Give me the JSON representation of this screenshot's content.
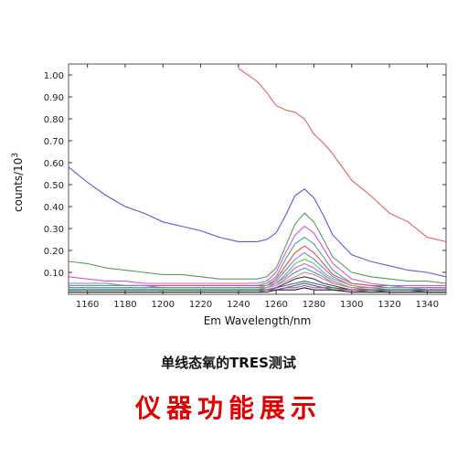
{
  "chart_data": {
    "type": "line",
    "xlabel": "Em Wavelength/nm",
    "ylabel_main": "counts/10",
    "ylabel_exp": "3",
    "xlim": [
      1150,
      1350
    ],
    "ylim": [
      0,
      1.05
    ],
    "x_ticks": [
      1160,
      1180,
      1200,
      1220,
      1240,
      1260,
      1280,
      1300,
      1320,
      1340
    ],
    "y_ticks": [
      0.1,
      0.2,
      0.3,
      0.4,
      0.5,
      0.6,
      0.7,
      0.8,
      0.9,
      1.0
    ],
    "y_tick_labels": [
      "0.10",
      "0.20",
      "0.30",
      "0.40",
      "0.50",
      "0.60",
      "0.70",
      "0.80",
      "0.90",
      "1.00"
    ],
    "grid": false,
    "x": [
      1150,
      1160,
      1170,
      1180,
      1190,
      1200,
      1210,
      1220,
      1230,
      1240,
      1250,
      1255,
      1260,
      1265,
      1270,
      1275,
      1280,
      1285,
      1290,
      1300,
      1310,
      1320,
      1330,
      1340,
      1350
    ],
    "series": [
      {
        "color": "#e06060",
        "values": [
          null,
          null,
          null,
          null,
          null,
          null,
          null,
          null,
          null,
          1.03,
          0.97,
          0.92,
          0.86,
          0.84,
          0.83,
          0.8,
          0.73,
          0.69,
          0.64,
          0.52,
          0.45,
          0.37,
          0.33,
          0.26,
          0.24
        ]
      },
      {
        "color": "#5a5ad8",
        "values": [
          0.58,
          0.51,
          0.45,
          0.4,
          0.37,
          0.33,
          0.31,
          0.29,
          0.26,
          0.24,
          0.24,
          0.25,
          0.28,
          0.36,
          0.45,
          0.48,
          0.44,
          0.36,
          0.27,
          0.18,
          0.15,
          0.13,
          0.11,
          0.1,
          0.08
        ]
      },
      {
        "color": "#5a9a5a",
        "values": [
          0.15,
          0.14,
          0.12,
          0.11,
          0.1,
          0.09,
          0.09,
          0.08,
          0.07,
          0.07,
          0.07,
          0.08,
          0.12,
          0.22,
          0.32,
          0.37,
          0.33,
          0.25,
          0.17,
          0.1,
          0.08,
          0.07,
          0.06,
          0.06,
          0.05
        ]
      },
      {
        "color": "#e050e0",
        "values": [
          0.08,
          0.07,
          0.06,
          0.06,
          0.05,
          0.05,
          0.05,
          0.05,
          0.05,
          0.05,
          0.05,
          0.06,
          0.1,
          0.19,
          0.27,
          0.31,
          0.28,
          0.21,
          0.14,
          0.07,
          0.05,
          0.04,
          0.04,
          0.04,
          0.04
        ]
      },
      {
        "color": "#50a0a0",
        "values": [
          0.05,
          0.05,
          0.05,
          0.04,
          0.04,
          0.04,
          0.04,
          0.04,
          0.04,
          0.04,
          0.04,
          0.05,
          0.08,
          0.16,
          0.23,
          0.26,
          0.23,
          0.17,
          0.11,
          0.05,
          0.04,
          0.04,
          0.03,
          0.03,
          0.03
        ]
      },
      {
        "color": "#e05050",
        "values": [
          0.04,
          0.04,
          0.04,
          0.04,
          0.04,
          0.04,
          0.04,
          0.04,
          0.04,
          0.04,
          0.04,
          0.04,
          0.07,
          0.13,
          0.19,
          0.22,
          0.19,
          0.14,
          0.09,
          0.05,
          0.04,
          0.03,
          0.03,
          0.03,
          0.03
        ]
      },
      {
        "color": "#8080e0",
        "values": [
          0.04,
          0.04,
          0.04,
          0.04,
          0.04,
          0.03,
          0.03,
          0.03,
          0.03,
          0.03,
          0.03,
          0.04,
          0.06,
          0.11,
          0.16,
          0.19,
          0.16,
          0.12,
          0.08,
          0.04,
          0.03,
          0.03,
          0.03,
          0.03,
          0.03
        ]
      },
      {
        "color": "#60c060",
        "values": [
          0.03,
          0.03,
          0.03,
          0.03,
          0.03,
          0.03,
          0.03,
          0.03,
          0.03,
          0.03,
          0.03,
          0.04,
          0.05,
          0.09,
          0.14,
          0.16,
          0.14,
          0.1,
          0.07,
          0.04,
          0.03,
          0.03,
          0.03,
          0.02,
          0.02
        ]
      },
      {
        "color": "#d060d0",
        "values": [
          0.03,
          0.03,
          0.03,
          0.03,
          0.03,
          0.03,
          0.03,
          0.03,
          0.03,
          0.03,
          0.03,
          0.03,
          0.05,
          0.08,
          0.12,
          0.14,
          0.12,
          0.09,
          0.06,
          0.03,
          0.03,
          0.02,
          0.02,
          0.02,
          0.02
        ]
      },
      {
        "color": "#40a0c0",
        "values": [
          0.03,
          0.03,
          0.03,
          0.03,
          0.03,
          0.03,
          0.03,
          0.03,
          0.03,
          0.03,
          0.03,
          0.03,
          0.04,
          0.07,
          0.1,
          0.12,
          0.1,
          0.08,
          0.05,
          0.03,
          0.02,
          0.02,
          0.02,
          0.02,
          0.02
        ]
      },
      {
        "color": "#e08080",
        "values": [
          0.02,
          0.02,
          0.02,
          0.02,
          0.02,
          0.02,
          0.02,
          0.02,
          0.02,
          0.02,
          0.02,
          0.03,
          0.04,
          0.06,
          0.08,
          0.1,
          0.09,
          0.07,
          0.05,
          0.03,
          0.02,
          0.02,
          0.02,
          0.02,
          0.02
        ]
      },
      {
        "color": "#404040",
        "values": [
          0.02,
          0.02,
          0.02,
          0.02,
          0.02,
          0.02,
          0.02,
          0.02,
          0.02,
          0.02,
          0.02,
          0.02,
          0.03,
          0.05,
          0.07,
          0.08,
          0.07,
          0.05,
          0.04,
          0.02,
          0.02,
          0.02,
          0.02,
          0.02,
          0.02
        ]
      },
      {
        "color": "#5050c0",
        "values": [
          0.02,
          0.02,
          0.02,
          0.02,
          0.02,
          0.02,
          0.02,
          0.02,
          0.02,
          0.02,
          0.02,
          0.02,
          0.03,
          0.04,
          0.05,
          0.06,
          0.05,
          0.04,
          0.03,
          0.02,
          0.02,
          0.02,
          0.02,
          0.01,
          0.01
        ]
      },
      {
        "color": "#208020",
        "values": [
          0.02,
          0.02,
          0.02,
          0.02,
          0.02,
          0.02,
          0.02,
          0.02,
          0.02,
          0.02,
          0.02,
          0.02,
          0.02,
          0.03,
          0.04,
          0.05,
          0.04,
          0.03,
          0.03,
          0.02,
          0.02,
          0.01,
          0.01,
          0.01,
          0.01
        ]
      },
      {
        "color": "#c040c0",
        "values": [
          0.01,
          0.01,
          0.01,
          0.01,
          0.01,
          0.01,
          0.01,
          0.01,
          0.01,
          0.01,
          0.01,
          0.02,
          0.02,
          0.03,
          0.03,
          0.04,
          0.03,
          0.03,
          0.02,
          0.02,
          0.01,
          0.01,
          0.01,
          0.01,
          0.01
        ]
      },
      {
        "color": "#202020",
        "values": [
          0.01,
          0.01,
          0.01,
          0.01,
          0.01,
          0.01,
          0.01,
          0.01,
          0.01,
          0.01,
          0.01,
          0.01,
          0.02,
          0.02,
          0.02,
          0.03,
          0.02,
          0.02,
          0.02,
          0.01,
          0.01,
          0.01,
          0.01,
          0.01,
          0.01
        ]
      }
    ]
  },
  "subtitle": "单线态氧的TRES测试",
  "headline": "仪器功能展示",
  "colors": {
    "headline": "#e00000",
    "axis": "#333333",
    "frame": "#555555"
  }
}
